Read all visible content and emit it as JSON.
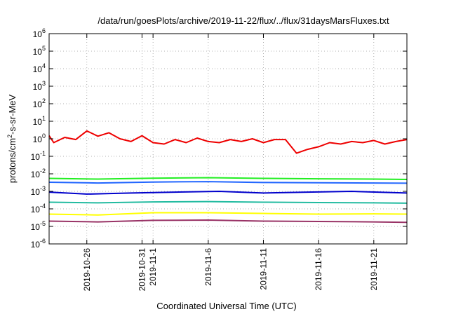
{
  "chart_data": {
    "type": "line",
    "title": "/data/run/goesPlots/archive/2019-11-22/flux/../flux/31daysMarsFluxes.txt",
    "xlabel": "Coordinated Universal Time (UTC)",
    "ylabel": {
      "base": "protons/cm",
      "sup": "2",
      "rest": "-s-sr-MeV"
    },
    "yscale": "log",
    "ylim_exp": [
      -6,
      6
    ],
    "xlim": [
      "2019-10-22T14:00",
      "2019-11-24T00:00"
    ],
    "grid": true,
    "x_ticks": [
      {
        "date": "2019-10-26",
        "label": "2019-10-26"
      },
      {
        "date": "2019-10-31",
        "label": "2019-10-31"
      },
      {
        "date": "2019-11-01",
        "label": "2019-11-1"
      },
      {
        "date": "2019-11-06",
        "label": "2019-11-6"
      },
      {
        "date": "2019-11-11",
        "label": "2019-11-11"
      },
      {
        "date": "2019-11-16",
        "label": "2019-11-16"
      },
      {
        "date": "2019-11-21",
        "label": "2019-11-21"
      }
    ],
    "y_ticks": [
      {
        "exp": -6,
        "label": "-6"
      },
      {
        "exp": -5,
        "label": "-5"
      },
      {
        "exp": -4,
        "label": "-4"
      },
      {
        "exp": -3,
        "label": "-3"
      },
      {
        "exp": -2,
        "label": "-2"
      },
      {
        "exp": -1,
        "label": "-1"
      },
      {
        "exp": 0,
        "label": "0"
      },
      {
        "exp": 1,
        "label": "1"
      },
      {
        "exp": 2,
        "label": "2"
      },
      {
        "exp": 3,
        "label": "3"
      },
      {
        "exp": 4,
        "label": "4"
      },
      {
        "exp": 5,
        "label": "5"
      },
      {
        "exp": 6,
        "label": "6"
      }
    ],
    "y_tick_base": "10",
    "series": [
      {
        "color": "#ee0000",
        "x": [
          "2019-10-22",
          "2019-10-23",
          "2019-10-24",
          "2019-10-25",
          "2019-10-26",
          "2019-10-27",
          "2019-10-28",
          "2019-10-29",
          "2019-10-30",
          "2019-10-31",
          "2019-11-01",
          "2019-11-02",
          "2019-11-03",
          "2019-11-04",
          "2019-11-05",
          "2019-11-06",
          "2019-11-07",
          "2019-11-08",
          "2019-11-09",
          "2019-11-10",
          "2019-11-11",
          "2019-11-12",
          "2019-11-13",
          "2019-11-14",
          "2019-11-15",
          "2019-11-16",
          "2019-11-17",
          "2019-11-18",
          "2019-11-19",
          "2019-11-20",
          "2019-11-21",
          "2019-11-22",
          "2019-11-23",
          "2019-11-24"
        ],
        "y": [
          1.5,
          0.6,
          1.2,
          0.9,
          2.8,
          1.4,
          2.2,
          1.0,
          0.7,
          1.5,
          0.6,
          0.5,
          0.9,
          0.6,
          1.1,
          0.7,
          0.6,
          0.9,
          0.7,
          1.0,
          0.6,
          0.9,
          0.9,
          0.15,
          0.25,
          0.35,
          0.6,
          0.5,
          0.7,
          0.6,
          0.8,
          0.5,
          0.7,
          0.9
        ]
      },
      {
        "color": "#22ee22",
        "x": [
          "2019-10-22",
          "2019-10-27",
          "2019-11-01",
          "2019-11-06",
          "2019-11-11",
          "2019-11-16",
          "2019-11-21",
          "2019-11-24"
        ],
        "y": [
          0.0055,
          0.005,
          0.0056,
          0.006,
          0.0055,
          0.0052,
          0.005,
          0.0048
        ]
      },
      {
        "color": "#2266ff",
        "x": [
          "2019-10-22",
          "2019-10-27",
          "2019-11-01",
          "2019-11-06",
          "2019-11-11",
          "2019-11-16",
          "2019-11-21",
          "2019-11-24"
        ],
        "y": [
          0.0033,
          0.003,
          0.0034,
          0.0036,
          0.0032,
          0.0031,
          0.003,
          0.0029
        ]
      },
      {
        "color": "#0000cc",
        "x": [
          "2019-10-22",
          "2019-10-26",
          "2019-10-30",
          "2019-11-03",
          "2019-11-07",
          "2019-11-11",
          "2019-11-15",
          "2019-11-19",
          "2019-11-24"
        ],
        "y": [
          0.0009,
          0.0007,
          0.0008,
          0.0009,
          0.001,
          0.0008,
          0.0009,
          0.001,
          0.0008
        ]
      },
      {
        "color": "#22bba0",
        "x": [
          "2019-10-22",
          "2019-10-27",
          "2019-11-01",
          "2019-11-06",
          "2019-11-11",
          "2019-11-16",
          "2019-11-21",
          "2019-11-24"
        ],
        "y": [
          0.00024,
          0.00022,
          0.00025,
          0.00026,
          0.00024,
          0.00023,
          0.00022,
          0.00021
        ]
      },
      {
        "color": "#ffff00",
        "x": [
          "2019-10-22",
          "2019-10-27",
          "2019-11-01",
          "2019-11-06",
          "2019-11-11",
          "2019-11-16",
          "2019-11-21",
          "2019-11-24"
        ],
        "y": [
          5e-05,
          4.5e-05,
          6e-05,
          6e-05,
          5.5e-05,
          5e-05,
          5.2e-05,
          5e-05
        ]
      },
      {
        "color": "#993366",
        "x": [
          "2019-10-22",
          "2019-10-27",
          "2019-11-01",
          "2019-11-06",
          "2019-11-11",
          "2019-11-16",
          "2019-11-21",
          "2019-11-24"
        ],
        "y": [
          2e-05,
          1.8e-05,
          2.2e-05,
          2.3e-05,
          2e-05,
          1.9e-05,
          1.8e-05,
          1.7e-05
        ]
      }
    ]
  }
}
